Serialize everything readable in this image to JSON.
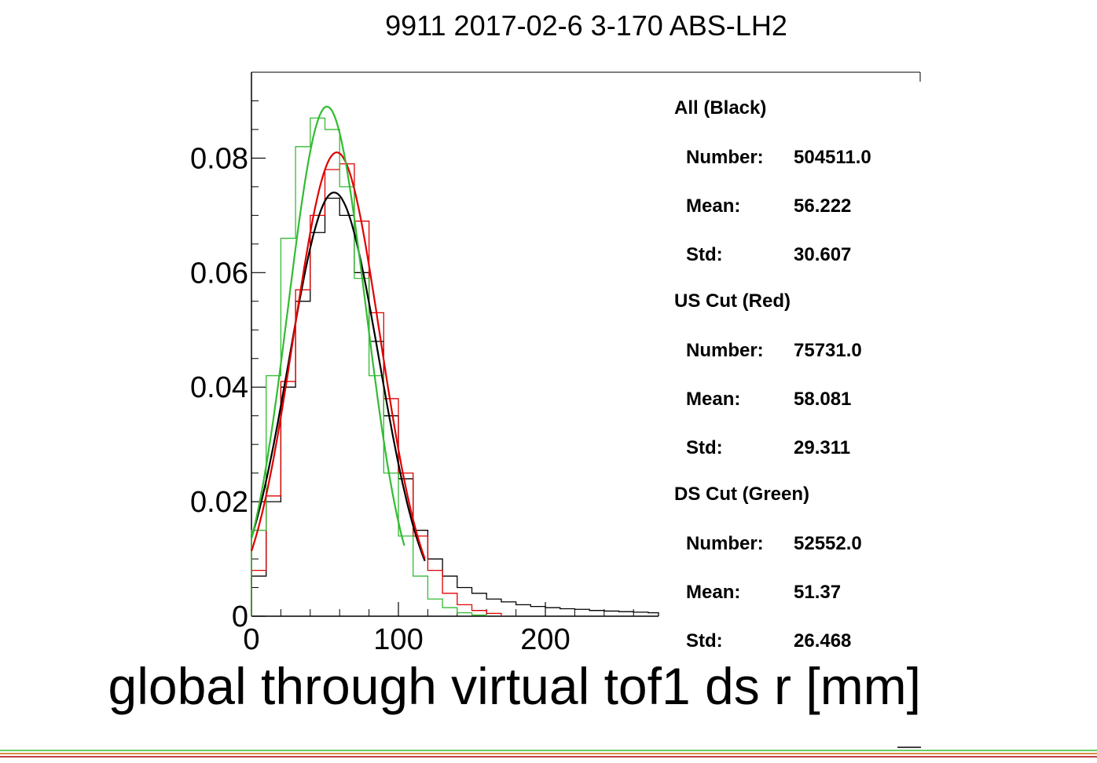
{
  "chart_data": {
    "type": "line",
    "title": "9911 2017-02-6 3-170 ABS-LH2",
    "xlabel": "global through virtual tof1 ds r [mm]",
    "ylabel": "",
    "xlim": [
      0,
      277
    ],
    "ylim": [
      0,
      0.095
    ],
    "x_ticks": [
      0,
      100,
      200
    ],
    "y_ticks": [
      0,
      0.02,
      0.04,
      0.06,
      0.08
    ],
    "x_tick_labels": [
      "0",
      "100",
      "200"
    ],
    "y_tick_labels": [
      "0",
      "0.02",
      "0.04",
      "0.06",
      "0.08"
    ],
    "grid": false,
    "legend_position": "right",
    "bin_width": 10,
    "series": [
      {
        "kind": "histogram",
        "color": "#000000",
        "x": [
          0,
          10,
          20,
          30,
          40,
          50,
          60,
          70,
          80,
          90,
          100,
          110,
          120,
          130,
          140,
          150,
          160,
          170,
          180,
          190,
          200,
          210,
          220,
          230,
          240,
          250,
          260,
          270
        ],
        "values": [
          0.007,
          0.02,
          0.04,
          0.055,
          0.067,
          0.073,
          0.07,
          0.06,
          0.048,
          0.035,
          0.024,
          0.015,
          0.01,
          0.007,
          0.005,
          0.004,
          0.003,
          0.0025,
          0.002,
          0.0017,
          0.0015,
          0.0013,
          0.0012,
          0.001,
          0.0009,
          0.0008,
          0.0007,
          0.0006
        ]
      },
      {
        "kind": "histogram",
        "color": "#e00000",
        "x": [
          0,
          10,
          20,
          30,
          40,
          50,
          60,
          70,
          80,
          90,
          100,
          110,
          120,
          130,
          140,
          150,
          160
        ],
        "values": [
          0.008,
          0.021,
          0.041,
          0.057,
          0.07,
          0.078,
          0.079,
          0.069,
          0.053,
          0.038,
          0.025,
          0.014,
          0.008,
          0.004,
          0.002,
          0.001,
          0.0005
        ]
      },
      {
        "kind": "histogram",
        "color": "#33bb33",
        "x": [
          0,
          10,
          20,
          30,
          40,
          50,
          60,
          70,
          80,
          90,
          100,
          110,
          120,
          130,
          140,
          150
        ],
        "values": [
          0.015,
          0.042,
          0.066,
          0.082,
          0.087,
          0.085,
          0.075,
          0.059,
          0.042,
          0.025,
          0.014,
          0.007,
          0.003,
          0.0015,
          0.0006,
          0.0002
        ]
      },
      {
        "kind": "fit",
        "color": "#000000",
        "mean": 56.222,
        "sigma": 30.607,
        "peak": 0.074,
        "range": [
          0,
          118
        ]
      },
      {
        "kind": "fit",
        "color": "#e00000",
        "mean": 58.081,
        "sigma": 29.311,
        "peak": 0.081,
        "range": [
          0,
          118
        ]
      },
      {
        "kind": "fit",
        "color": "#33bb33",
        "mean": 51.37,
        "sigma": 26.468,
        "peak": 0.089,
        "range": [
          0,
          104
        ]
      }
    ],
    "stats": [
      {
        "header": "All (Black)",
        "number_label": "Number:",
        "number": "504511.0",
        "mean_label": "Mean:",
        "mean": "56.222",
        "std_label": "Std:",
        "std": "30.607"
      },
      {
        "header": "US Cut (Red)",
        "number_label": "Number:",
        "number": "75731.0",
        "mean_label": "Mean:",
        "mean": "58.081",
        "std_label": "Std:",
        "std": "29.311"
      },
      {
        "header": "DS Cut (Green)",
        "number_label": "Number:",
        "number": "52552.0",
        "mean_label": "Mean:",
        "mean": "51.37",
        "std_label": "Std:",
        "std": "26.468"
      }
    ]
  }
}
